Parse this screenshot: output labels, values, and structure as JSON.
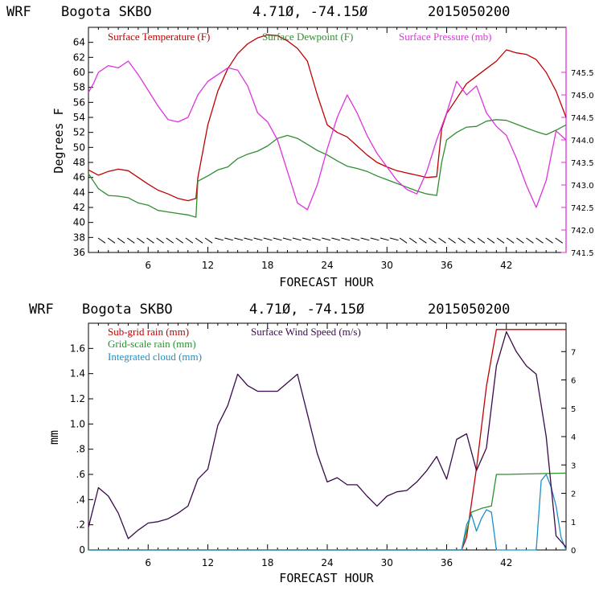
{
  "colors": {
    "temperature": "#c00000",
    "dewpoint": "#2f8f2f",
    "pressure": "#dd33dd",
    "subgrid": "#c00000",
    "gridscale": "#2f8f2f",
    "cloud": "#1e90c8",
    "wind": "#3a0a4a",
    "axis_top": "#000000",
    "axis_right_top": "#dd33dd"
  },
  "chart_data": [
    {
      "type": "line",
      "header": {
        "model": "WRF",
        "station": "Bogota SKBO",
        "coords": "4.71Ø, -74.15Ø",
        "init": "2015050200"
      },
      "xlabel": "FORECAST HOUR",
      "ylabel": "Degrees F",
      "xlim": [
        0,
        48
      ],
      "ylim": [
        36,
        66
      ],
      "ylim_right": [
        741.5,
        746.5
      ],
      "x_ticks": [
        6,
        12,
        18,
        24,
        30,
        36,
        42
      ],
      "x_tick_labels": [
        "6",
        "12",
        "18",
        "24",
        "30",
        "36",
        "42"
      ],
      "y_ticks": [
        36,
        38,
        40,
        42,
        44,
        46,
        48,
        50,
        52,
        54,
        56,
        58,
        60,
        62,
        64
      ],
      "y_tick_labels": [
        "36",
        "38",
        "40",
        "42",
        "44",
        "46",
        "48",
        "50",
        "52",
        "54",
        "56",
        "58",
        "60",
        "62",
        "64"
      ],
      "y_right_ticks": [
        741.5,
        742.0,
        742.5,
        743.0,
        743.5,
        744.0,
        744.5,
        745.0,
        745.5
      ],
      "y_right_tick_labels": [
        "741.5",
        "742.0",
        "742.5",
        "743.0",
        "743.5",
        "744.0",
        "744.5",
        "745.0",
        "745.5"
      ],
      "legend": [
        "Surface Temperature (F)",
        "Surface Dewpoint (F)",
        "Surface Pressure (mb)"
      ],
      "series": [
        {
          "name": "Surface Temperature (F)",
          "axis": "left",
          "x": [
            0,
            1,
            2,
            3,
            4,
            5,
            6,
            7,
            8,
            9,
            10,
            10.8,
            11,
            12,
            13,
            14,
            15,
            16,
            17,
            18,
            19,
            20,
            21,
            22,
            23,
            24,
            25,
            26,
            27,
            28,
            29,
            30,
            31,
            32,
            33,
            34,
            35,
            35.5,
            36,
            37,
            38,
            39,
            40,
            41,
            42,
            43,
            44,
            45,
            46,
            47,
            48
          ],
          "values": [
            47,
            46.3,
            46.8,
            47.1,
            46.9,
            46,
            45.1,
            44.3,
            43.8,
            43.2,
            42.9,
            43.2,
            46,
            53,
            57.5,
            60.5,
            62.5,
            63.8,
            64.6,
            65,
            64.9,
            64.2,
            63.2,
            61.5,
            57,
            53,
            52,
            51.4,
            50.2,
            49,
            48,
            47.4,
            46.9,
            46.6,
            46.3,
            46,
            46.1,
            52.5,
            54.5,
            56.5,
            58.5,
            59.5,
            60.5,
            61.5,
            63,
            62.6,
            62.4,
            61.7,
            60,
            57.5,
            54
          ]
        },
        {
          "name": "Surface Dewpoint (F)",
          "axis": "left",
          "x": [
            0,
            1,
            2,
            3,
            4,
            5,
            6,
            7,
            8,
            9,
            10,
            10.8,
            11,
            12,
            13,
            14,
            15,
            16,
            17,
            18,
            19,
            20,
            21,
            22,
            23,
            24,
            25,
            26,
            27,
            28,
            29,
            30,
            31,
            32,
            33,
            34,
            35,
            35.5,
            36,
            37,
            38,
            39,
            40,
            41,
            42,
            43,
            44,
            45,
            46,
            47,
            48
          ],
          "values": [
            46.5,
            44.5,
            43.6,
            43.5,
            43.3,
            42.6,
            42.3,
            41.6,
            41.4,
            41.2,
            41,
            40.7,
            45.5,
            46.2,
            47,
            47.4,
            48.5,
            49.1,
            49.5,
            50.2,
            51.2,
            51.6,
            51.2,
            50.4,
            49.6,
            49,
            48.2,
            47.5,
            47.2,
            46.8,
            46.2,
            45.7,
            45.2,
            44.7,
            44.2,
            43.8,
            43.6,
            48,
            51,
            52,
            52.7,
            52.8,
            53.5,
            53.7,
            53.6,
            53.1,
            52.6,
            52.1,
            51.7,
            52.3,
            53
          ]
        },
        {
          "name": "Surface Pressure (mb)",
          "axis": "right",
          "x": [
            0,
            0.5,
            1,
            2,
            3,
            4,
            5,
            6,
            7,
            8,
            9,
            10,
            11,
            12,
            13,
            14,
            15,
            16,
            17,
            18,
            19,
            20,
            21,
            22,
            23,
            24,
            25,
            26,
            27,
            28,
            29,
            30,
            31,
            32,
            33,
            34,
            35,
            36,
            37,
            38,
            39,
            40,
            41,
            42,
            43,
            44,
            45,
            46,
            47,
            48
          ],
          "values": [
            745.05,
            745.25,
            745.5,
            745.65,
            745.6,
            745.75,
            745.45,
            745.1,
            744.75,
            744.45,
            744.4,
            744.5,
            745.0,
            745.3,
            745.45,
            745.6,
            745.55,
            745.2,
            744.6,
            744.4,
            744.0,
            743.3,
            742.6,
            742.45,
            743.0,
            743.8,
            744.5,
            745.0,
            744.6,
            744.1,
            743.7,
            743.4,
            743.1,
            742.9,
            742.8,
            743.3,
            744.0,
            744.6,
            745.3,
            745.0,
            745.2,
            744.6,
            744.3,
            744.1,
            743.6,
            743.0,
            742.5,
            743.1,
            744.2,
            744.0
          ]
        }
      ],
      "wind_barbs": "surface wind barbs along bottom"
    },
    {
      "type": "line",
      "header": {
        "model": "WRF",
        "station": "Bogota SKBO",
        "coords": "4.71Ø, -74.15Ø",
        "init": "2015050200"
      },
      "xlabel": "FORECAST HOUR",
      "ylabel": "mm",
      "xlim": [
        0,
        48
      ],
      "ylim": [
        0,
        1.8
      ],
      "ylim_right": [
        0,
        8
      ],
      "x_ticks": [
        6,
        12,
        18,
        24,
        30,
        36,
        42
      ],
      "x_tick_labels": [
        "6",
        "12",
        "18",
        "24",
        "30",
        "36",
        "42"
      ],
      "y_ticks": [
        0,
        0.2,
        0.4,
        0.6,
        0.8,
        1.0,
        1.2,
        1.4,
        1.6
      ],
      "y_tick_labels": [
        "0",
        ".2",
        ".4",
        ".6",
        ".8",
        "1.0",
        "1.2",
        "1.4",
        "1.6"
      ],
      "y_right_ticks": [
        0,
        1,
        2,
        3,
        4,
        5,
        6,
        7
      ],
      "y_right_tick_labels": [
        "0",
        "1",
        "2",
        "3",
        "4",
        "5",
        "6",
        "7"
      ],
      "legend": [
        "Sub-grid rain (mm)",
        "Grid-scale rain (mm)",
        "Integrated cloud (mm)",
        "Surface Wind Speed (m/s)"
      ],
      "series": [
        {
          "name": "Sub-grid rain (mm)",
          "axis": "left",
          "x": [
            0,
            37.5,
            38,
            39,
            40,
            41,
            42,
            48
          ],
          "values": [
            0,
            0,
            0.1,
            0.65,
            1.3,
            1.75,
            1.75,
            1.75
          ]
        },
        {
          "name": "Grid-scale rain (mm)",
          "axis": "left",
          "x": [
            0,
            37.5,
            38.5,
            39.5,
            40.5,
            41,
            42,
            48
          ],
          "values": [
            0,
            0,
            0.3,
            0.33,
            0.35,
            0.6,
            0.6,
            0.61
          ]
        },
        {
          "name": "Integrated cloud (mm)",
          "axis": "left",
          "x": [
            0,
            37.5,
            38,
            38.5,
            39,
            39.5,
            40,
            40.5,
            41,
            45,
            45.5,
            46,
            46.5,
            47,
            47.5,
            48
          ],
          "values": [
            0,
            0,
            0.2,
            0.28,
            0.15,
            0.25,
            0.32,
            0.3,
            0,
            0,
            0.55,
            0.6,
            0.5,
            0.35,
            0.1,
            0
          ]
        },
        {
          "name": "Surface Wind Speed (m/s)",
          "axis": "right",
          "x": [
            0,
            1,
            2,
            3,
            4,
            5,
            6,
            7,
            8,
            9,
            10,
            11,
            12,
            13,
            14,
            15,
            16,
            17,
            18,
            19,
            20,
            21,
            22,
            23,
            24,
            25,
            26,
            27,
            28,
            29,
            30,
            31,
            32,
            33,
            34,
            35,
            36,
            37,
            38,
            39,
            40,
            41,
            42,
            43,
            44,
            45,
            46,
            47,
            48
          ],
          "values": [
            0.8,
            2.2,
            1.9,
            1.3,
            0.4,
            0.7,
            0.95,
            1.0,
            1.1,
            1.3,
            1.55,
            2.5,
            2.85,
            4.4,
            5.1,
            6.2,
            5.8,
            5.6,
            5.6,
            5.6,
            5.9,
            6.2,
            4.8,
            3.4,
            2.4,
            2.55,
            2.3,
            2.3,
            1.9,
            1.55,
            1.9,
            2.05,
            2.1,
            2.4,
            2.8,
            3.3,
            2.5,
            3.9,
            4.1,
            2.8,
            3.6,
            6.5,
            7.7,
            7.0,
            6.5,
            6.2,
            4.0,
            0.5,
            0.1
          ]
        }
      ]
    }
  ]
}
